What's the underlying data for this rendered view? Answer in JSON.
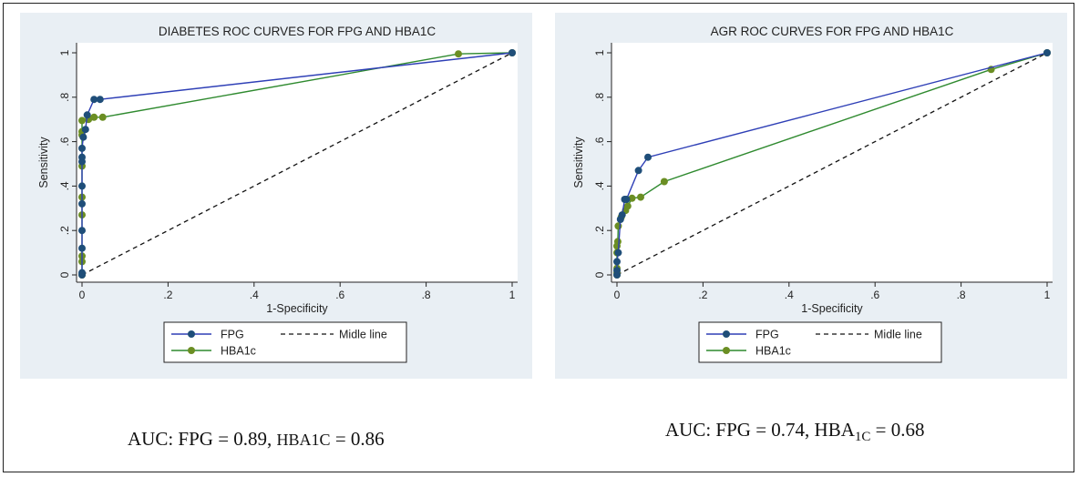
{
  "chart_data": [
    {
      "type": "line",
      "title": "DIABETES ROC CURVES FOR FPG AND HBA1C",
      "xlabel": "1-Specificity",
      "ylabel": "Sensitivity",
      "xlim": [
        0,
        1
      ],
      "ylim": [
        0,
        1
      ],
      "xticks": [
        "0",
        ".2",
        ".4",
        ".6",
        ".8",
        "1"
      ],
      "yticks": [
        "0",
        ".2",
        ".4",
        ".6",
        ".8",
        "1"
      ],
      "legend": [
        "FPG",
        "Midle line",
        "HBA1c"
      ],
      "legend_position": "bottom",
      "grid": false,
      "series": [
        {
          "name": "FPG",
          "color": "#2e3fb6",
          "marker_color": "#1f4e79",
          "x": [
            0,
            0,
            0,
            0,
            0,
            0,
            0,
            0,
            0,
            0.003,
            0.008,
            0.012,
            0.028,
            0.042,
            1
          ],
          "y": [
            0,
            0.01,
            0.12,
            0.2,
            0.32,
            0.4,
            0.51,
            0.53,
            0.57,
            0.62,
            0.655,
            0.72,
            0.79,
            0.79,
            1
          ]
        },
        {
          "name": "HBA1c",
          "color": "#2f8a2f",
          "marker_color": "#6b8e23",
          "x": [
            0,
            0,
            0,
            0,
            0,
            0,
            0,
            0,
            0,
            0.015,
            0.028,
            0.048,
            0.875,
            1
          ],
          "y": [
            0,
            0.06,
            0.085,
            0.27,
            0.35,
            0.49,
            0.63,
            0.645,
            0.695,
            0.7,
            0.71,
            0.71,
            0.995,
            1
          ]
        },
        {
          "name": "Midle line",
          "color": "#111111",
          "dashed": true,
          "x": [
            0,
            1
          ],
          "y": [
            0,
            1
          ]
        }
      ]
    },
    {
      "type": "line",
      "title": "AGR ROC CURVES FOR FPG AND HBA1C",
      "xlabel": "1-Specificity",
      "ylabel": "Sensitivity",
      "xlim": [
        0,
        1
      ],
      "ylim": [
        0,
        1
      ],
      "xticks": [
        "0",
        ".2",
        ".4",
        ".6",
        ".8",
        "1"
      ],
      "yticks": [
        "0",
        ".2",
        ".4",
        ".6",
        ".8",
        "1"
      ],
      "legend": [
        "FPG",
        "Midle line",
        "HBA1c"
      ],
      "legend_position": "bottom",
      "grid": false,
      "series": [
        {
          "name": "FPG",
          "color": "#2e3fb6",
          "marker_color": "#1f4e79",
          "x": [
            0,
            0,
            0,
            0.003,
            0.008,
            0.012,
            0.018,
            0.022,
            0.05,
            0.072,
            1
          ],
          "y": [
            0,
            0.02,
            0.06,
            0.1,
            0.25,
            0.27,
            0.34,
            0.34,
            0.47,
            0.53,
            1
          ]
        },
        {
          "name": "HBA1c",
          "color": "#2f8a2f",
          "marker_color": "#6b8e23",
          "x": [
            0,
            0,
            0,
            0,
            0,
            0.002,
            0.003,
            0.01,
            0.02,
            0.025,
            0.035,
            0.055,
            0.11,
            0.87,
            1
          ],
          "y": [
            0,
            0.01,
            0.03,
            0.1,
            0.13,
            0.15,
            0.22,
            0.26,
            0.29,
            0.31,
            0.345,
            0.35,
            0.42,
            0.925,
            1
          ]
        },
        {
          "name": "Midle line",
          "color": "#111111",
          "dashed": true,
          "x": [
            0,
            1
          ],
          "y": [
            0,
            1
          ]
        }
      ]
    }
  ],
  "captions": {
    "left": {
      "prefix": "AUC: FPG = 0.89, ",
      "hba": "HBA1C",
      "suffix": " = 0.86"
    },
    "right": {
      "prefix": "AUC: FPG = 0.74, HBA",
      "sub": "1C",
      "suffix": " = 0.68"
    }
  }
}
